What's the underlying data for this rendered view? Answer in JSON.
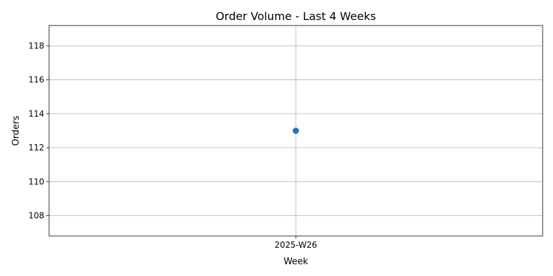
{
  "chart_data": {
    "type": "line",
    "title": "Order Volume - Last 4 Weeks",
    "xlabel": "Week",
    "ylabel": "Orders",
    "categories": [
      "2025-W26"
    ],
    "series": [
      {
        "values": [
          113
        ],
        "color": "#1f77b4",
        "marker": "circle"
      }
    ],
    "ylim": [
      106.8,
      119.2
    ],
    "yticks": [
      108,
      110,
      112,
      114,
      116,
      118
    ],
    "grid": true,
    "legend": "none"
  }
}
